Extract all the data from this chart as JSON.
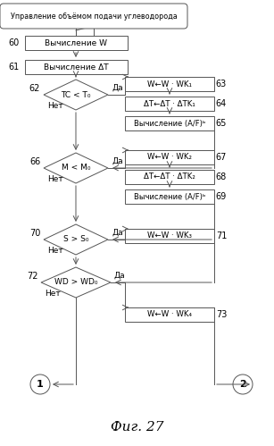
{
  "background_color": "#ffffff",
  "start_label": "Управление объёмом подачи углеводорода",
  "box60_label": "Вычисление W",
  "box61_label": "Вычисление ΔT",
  "d62_label": "TC < T₀",
  "d66_label": "M < M₀",
  "d70_label": "S > S₀",
  "d72_label": "WD > WD₀",
  "rb63_label": "W←W · WK₁",
  "rb64_label": "ΔT←ΔT · ΔTK₁",
  "rb65_label": "Вычисление (A/F)ᵇ",
  "rb67_label": "W←W · WK₂",
  "rb68_label": "ΔT←ΔT · ΔTK₂",
  "rb69_label": "Вычисление (A/F)ᵇ",
  "rb71_label": "W←W · WK₃",
  "rb73_label": "W←W · WK₄",
  "yes_label": "Да",
  "no_label": "Нет",
  "fig_label": "Фиг. 27",
  "num60": "60",
  "num61": "61",
  "num62": "62",
  "num63": "63",
  "num64": "64",
  "num65": "65",
  "num66": "66",
  "num67": "67",
  "num68": "68",
  "num69": "69",
  "num70": "70",
  "num71": "71",
  "num72": "72",
  "num73": "73",
  "t1": "1",
  "t2": "2"
}
